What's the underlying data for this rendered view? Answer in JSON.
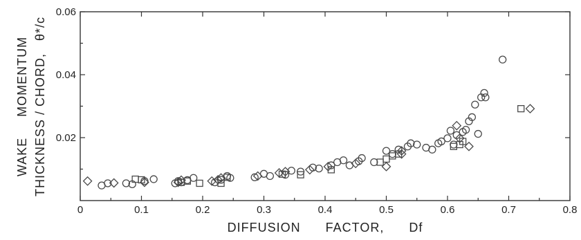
{
  "chart_data": {
    "type": "scatter",
    "xlabel": "DIFFUSION      FACTOR,      Df",
    "ylabel": "WAKE     MOMENTUM",
    "ylabel2": "THICKNESS / CHORD,   θ*/c",
    "xlim": [
      0,
      0.8
    ],
    "ylim": [
      0,
      0.06
    ],
    "xticks": [
      "0",
      "0.1",
      "0.2",
      "0.3",
      "0.4",
      "0.5",
      "0.6",
      "0.7",
      "0.8"
    ],
    "yticks": [
      "0.02",
      "0.04",
      "0.06"
    ],
    "grid": false,
    "series": [
      {
        "marker": "circle",
        "points": [
          [
            0.035,
            0.0048
          ],
          [
            0.045,
            0.0055
          ],
          [
            0.075,
            0.0055
          ],
          [
            0.085,
            0.0052
          ],
          [
            0.105,
            0.0062
          ],
          [
            0.12,
            0.0068
          ],
          [
            0.155,
            0.0055
          ],
          [
            0.16,
            0.0062
          ],
          [
            0.165,
            0.0058
          ],
          [
            0.175,
            0.0065
          ],
          [
            0.185,
            0.0072
          ],
          [
            0.22,
            0.0058
          ],
          [
            0.23,
            0.0066
          ],
          [
            0.24,
            0.0078
          ],
          [
            0.245,
            0.0072
          ],
          [
            0.285,
            0.0074
          ],
          [
            0.3,
            0.0085
          ],
          [
            0.31,
            0.0078
          ],
          [
            0.335,
            0.0082
          ],
          [
            0.345,
            0.0095
          ],
          [
            0.36,
            0.0092
          ],
          [
            0.38,
            0.0105
          ],
          [
            0.39,
            0.0102
          ],
          [
            0.41,
            0.0112
          ],
          [
            0.42,
            0.0122
          ],
          [
            0.43,
            0.0128
          ],
          [
            0.44,
            0.0112
          ],
          [
            0.455,
            0.0125
          ],
          [
            0.46,
            0.0135
          ],
          [
            0.48,
            0.0122
          ],
          [
            0.5,
            0.0158
          ],
          [
            0.51,
            0.0148
          ],
          [
            0.52,
            0.0162
          ],
          [
            0.535,
            0.0172
          ],
          [
            0.54,
            0.0182
          ],
          [
            0.55,
            0.0178
          ],
          [
            0.565,
            0.0168
          ],
          [
            0.575,
            0.0162
          ],
          [
            0.585,
            0.0182
          ],
          [
            0.59,
            0.0188
          ],
          [
            0.6,
            0.0198
          ],
          [
            0.605,
            0.0222
          ],
          [
            0.61,
            0.0178
          ],
          [
            0.615,
            0.0208
          ],
          [
            0.625,
            0.0218
          ],
          [
            0.63,
            0.0225
          ],
          [
            0.635,
            0.0252
          ],
          [
            0.64,
            0.0265
          ],
          [
            0.645,
            0.0305
          ],
          [
            0.65,
            0.0212
          ],
          [
            0.655,
            0.0328
          ],
          [
            0.66,
            0.0342
          ],
          [
            0.662,
            0.0328
          ],
          [
            0.69,
            0.0448
          ]
        ]
      },
      {
        "marker": "square",
        "points": [
          [
            0.09,
            0.0068
          ],
          [
            0.1,
            0.0066
          ],
          [
            0.165,
            0.0058
          ],
          [
            0.175,
            0.0062
          ],
          [
            0.195,
            0.0055
          ],
          [
            0.23,
            0.0055
          ],
          [
            0.24,
            0.0074
          ],
          [
            0.33,
            0.0084
          ],
          [
            0.36,
            0.0082
          ],
          [
            0.41,
            0.0098
          ],
          [
            0.49,
            0.0122
          ],
          [
            0.5,
            0.0132
          ],
          [
            0.51,
            0.0142
          ],
          [
            0.52,
            0.0148
          ],
          [
            0.61,
            0.0172
          ],
          [
            0.62,
            0.0178
          ],
          [
            0.625,
            0.0188
          ],
          [
            0.72,
            0.0292
          ]
        ]
      },
      {
        "marker": "diamond",
        "points": [
          [
            0.012,
            0.0062
          ],
          [
            0.055,
            0.0056
          ],
          [
            0.105,
            0.0058
          ],
          [
            0.16,
            0.0058
          ],
          [
            0.165,
            0.0065
          ],
          [
            0.215,
            0.0062
          ],
          [
            0.225,
            0.0066
          ],
          [
            0.23,
            0.0072
          ],
          [
            0.29,
            0.0078
          ],
          [
            0.325,
            0.0088
          ],
          [
            0.335,
            0.0092
          ],
          [
            0.375,
            0.0098
          ],
          [
            0.405,
            0.0108
          ],
          [
            0.45,
            0.0118
          ],
          [
            0.5,
            0.0108
          ],
          [
            0.525,
            0.0158
          ],
          [
            0.525,
            0.0148
          ],
          [
            0.615,
            0.0238
          ],
          [
            0.62,
            0.0198
          ],
          [
            0.635,
            0.0172
          ],
          [
            0.735,
            0.0292
          ]
        ]
      }
    ]
  }
}
